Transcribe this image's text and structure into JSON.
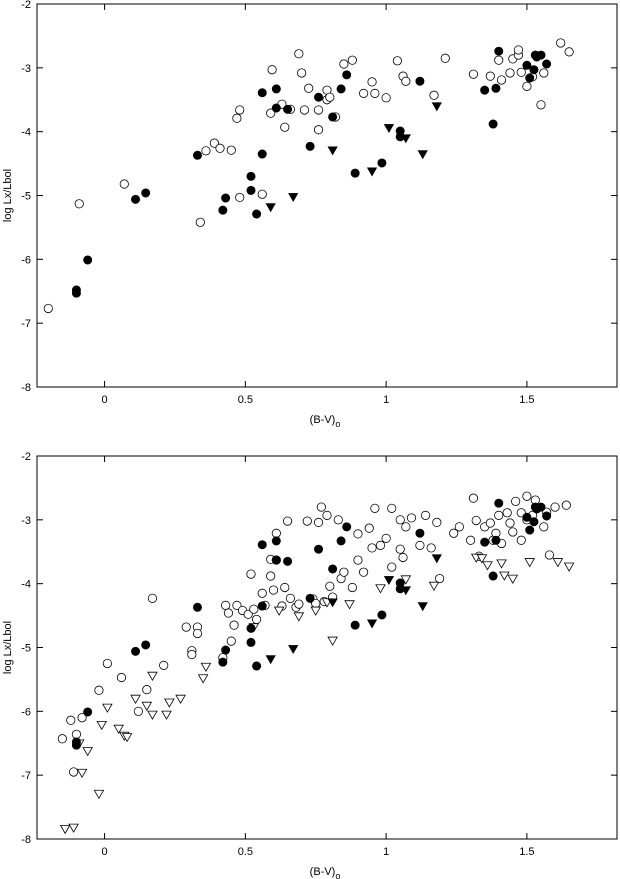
{
  "chart_data": [
    {
      "type": "scatter",
      "xlabel": "(B-V)",
      "xlabel_subscript": "o",
      "ylabel": "log Lx/Lbol",
      "xlim": [
        -0.24,
        1.82
      ],
      "ylim": [
        -8,
        -2
      ],
      "xticks": [
        0,
        0.5,
        1,
        1.5
      ],
      "yticks": [
        -8,
        -7,
        -6,
        -5,
        -4,
        -3,
        -2
      ],
      "series": [
        {
          "marker": "circle",
          "filled": false,
          "color": "#000000",
          "x": [
            -0.2,
            -0.09,
            0.07,
            0.34,
            0.36,
            0.39,
            0.41,
            0.45,
            0.47,
            0.48,
            0.48,
            0.56,
            0.59,
            0.595,
            0.63,
            0.64,
            0.66,
            0.69,
            0.7,
            0.71,
            0.725,
            0.76,
            0.76,
            0.79,
            0.79,
            0.8,
            0.82,
            0.85,
            0.88,
            0.92,
            0.95,
            0.96,
            1.0,
            1.04,
            1.06,
            1.07,
            1.17,
            1.21,
            1.31,
            1.37,
            1.4,
            1.41,
            1.44,
            1.45,
            1.47,
            1.47,
            1.48,
            1.5,
            1.52,
            1.55,
            1.56,
            1.62,
            1.65
          ],
          "values": [
            -6.77,
            -5.13,
            -4.82,
            -5.42,
            -4.3,
            -4.18,
            -4.26,
            -4.29,
            -3.79,
            -3.66,
            -5.03,
            -4.98,
            -3.71,
            -3.03,
            -3.57,
            -3.93,
            -3.65,
            -2.78,
            -3.08,
            -3.66,
            -3.32,
            -3.66,
            -3.97,
            -3.35,
            -3.5,
            -3.46,
            -3.77,
            -2.94,
            -2.88,
            -3.4,
            -3.22,
            -3.4,
            -3.47,
            -2.89,
            -3.13,
            -3.21,
            -3.43,
            -2.85,
            -3.1,
            -3.13,
            -2.88,
            -3.19,
            -3.08,
            -2.86,
            -2.8,
            -2.72,
            -3.07,
            -3.29,
            -3.14,
            -3.58,
            -3.08,
            -2.61,
            -2.75
          ]
        },
        {
          "marker": "circle",
          "filled": true,
          "color": "#000000",
          "x": [
            -0.1,
            -0.1,
            -0.06,
            0.11,
            0.146,
            0.33,
            0.42,
            0.43,
            0.52,
            0.52,
            0.54,
            0.56,
            0.56,
            0.61,
            0.61,
            0.65,
            0.73,
            0.76,
            0.81,
            0.84,
            0.86,
            0.89,
            1.05,
            1.05,
            0.985,
            1.12,
            1.35,
            1.38,
            1.39,
            1.4,
            1.5,
            1.51,
            1.525,
            1.53,
            1.535,
            1.55,
            1.57
          ],
          "values": [
            -6.53,
            -6.48,
            -6.01,
            -5.06,
            -4.96,
            -4.37,
            -5.23,
            -5.04,
            -4.92,
            -4.7,
            -5.29,
            -4.35,
            -3.39,
            -3.33,
            -3.63,
            -3.65,
            -4.23,
            -3.46,
            -3.77,
            -3.33,
            -3.11,
            -4.65,
            -3.99,
            -4.08,
            -4.49,
            -3.21,
            -3.35,
            -3.88,
            -3.32,
            -2.74,
            -2.96,
            -3.16,
            -3.03,
            -2.8,
            -2.83,
            -2.8,
            -2.94
          ]
        },
        {
          "marker": "triangle-down",
          "filled": true,
          "color": "#000000",
          "x": [
            0.59,
            0.67,
            0.81,
            0.95,
            1.01,
            1.07,
            1.13,
            1.18
          ],
          "values": [
            -5.18,
            -5.02,
            -4.29,
            -4.62,
            -3.94,
            -4.1,
            -4.35,
            -3.6
          ]
        }
      ]
    },
    {
      "type": "scatter",
      "xlabel": "(B-V)",
      "xlabel_subscript": "o",
      "ylabel": "log Lx/Lbol",
      "xlim": [
        -0.24,
        1.82
      ],
      "ylim": [
        -8,
        -2
      ],
      "xticks": [
        0,
        0.5,
        1,
        1.5
      ],
      "yticks": [
        -8,
        -7,
        -6,
        -5,
        -4,
        -3,
        -2
      ],
      "series": [
        {
          "marker": "circle",
          "filled": false,
          "color": "#000000",
          "x": [
            -0.15,
            -0.12,
            -0.1,
            -0.11,
            -0.08,
            -0.02,
            0.01,
            0.06,
            0.12,
            0.15,
            0.17,
            0.21,
            0.29,
            0.31,
            0.31,
            0.33,
            0.33,
            0.42,
            0.43,
            0.44,
            0.45,
            0.46,
            0.47,
            0.49,
            0.51,
            0.52,
            0.53,
            0.54,
            0.56,
            0.57,
            0.59,
            0.59,
            0.6,
            0.61,
            0.61,
            0.63,
            0.64,
            0.65,
            0.66,
            0.68,
            0.69,
            0.72,
            0.74,
            0.75,
            0.76,
            0.77,
            0.78,
            0.79,
            0.8,
            0.81,
            0.83,
            0.84,
            0.85,
            0.88,
            0.9,
            0.9,
            0.92,
            0.94,
            0.95,
            0.96,
            0.98,
            1.0,
            1.02,
            1.02,
            1.05,
            1.05,
            1.06,
            1.07,
            1.09,
            1.12,
            1.14,
            1.16,
            1.18,
            1.19,
            1.24,
            1.26,
            1.3,
            1.31,
            1.32,
            1.33,
            1.35,
            1.37,
            1.38,
            1.39,
            1.4,
            1.41,
            1.43,
            1.44,
            1.45,
            1.46,
            1.48,
            1.48,
            1.5,
            1.5,
            1.52,
            1.53,
            1.56,
            1.57,
            1.58,
            1.6,
            1.64
          ],
          "values": [
            -6.43,
            -6.14,
            -6.36,
            -6.95,
            -6.1,
            -5.67,
            -5.25,
            -5.47,
            -6.0,
            -5.66,
            -4.23,
            -5.28,
            -4.68,
            -5.05,
            -5.11,
            -4.68,
            -4.78,
            -5.16,
            -4.34,
            -4.46,
            -4.9,
            -4.65,
            -4.34,
            -4.42,
            -4.48,
            -3.85,
            -4.4,
            -4.56,
            -4.15,
            -4.34,
            -3.62,
            -3.88,
            -4.1,
            -3.21,
            -3.63,
            -4.35,
            -4.06,
            -3.02,
            -4.23,
            -4.37,
            -4.32,
            -3.02,
            -4.24,
            -4.31,
            -3.04,
            -2.8,
            -4.28,
            -2.93,
            -4.04,
            -4.21,
            -3.0,
            -3.92,
            -3.82,
            -4.06,
            -3.63,
            -3.22,
            -3.82,
            -3.13,
            -3.44,
            -2.82,
            -3.4,
            -3.29,
            -2.82,
            -3.74,
            -3.0,
            -3.46,
            -3.59,
            -3.11,
            -2.97,
            -3.4,
            -2.93,
            -3.44,
            -3.04,
            -3.92,
            -3.21,
            -3.11,
            -3.32,
            -2.66,
            -3.01,
            -3.57,
            -3.11,
            -3.05,
            -3.32,
            -3.21,
            -2.93,
            -3.37,
            -2.89,
            -3.05,
            -3.19,
            -2.71,
            -3.32,
            -2.89,
            -3.0,
            -2.63,
            -2.93,
            -2.69,
            -3.11,
            -2.88,
            -3.55,
            -2.8,
            -2.77
          ]
        },
        {
          "marker": "triangle-down",
          "filled": false,
          "color": "#000000",
          "x": [
            -0.14,
            -0.11,
            -0.09,
            -0.08,
            -0.06,
            -0.02,
            -0.01,
            0.01,
            0.05,
            0.07,
            0.08,
            0.11,
            0.15,
            0.17,
            0.17,
            0.22,
            0.23,
            0.27,
            0.35,
            0.36,
            0.53,
            0.62,
            0.69,
            0.75,
            0.79,
            0.81,
            0.87,
            0.98,
            1.07,
            1.17,
            1.32,
            1.34,
            1.36,
            1.41,
            1.42,
            1.45,
            1.51,
            1.61,
            1.65
          ],
          "values": [
            -7.84,
            -7.82,
            -6.5,
            -6.96,
            -6.62,
            -7.29,
            -6.21,
            -5.94,
            -6.27,
            -6.38,
            -6.4,
            -5.8,
            -5.91,
            -6.05,
            -5.44,
            -6.05,
            -5.86,
            -5.8,
            -5.48,
            -5.3,
            -4.68,
            -4.42,
            -4.51,
            -4.42,
            -4.29,
            -4.89,
            -4.32,
            -4.07,
            -3.93,
            -4.03,
            -3.59,
            -3.6,
            -3.71,
            -3.68,
            -3.87,
            -3.92,
            -3.66,
            -3.66,
            -3.73
          ]
        },
        {
          "marker": "circle",
          "filled": true,
          "color": "#000000",
          "x": [
            -0.1,
            -0.1,
            -0.06,
            0.11,
            0.146,
            0.33,
            0.42,
            0.43,
            0.52,
            0.52,
            0.54,
            0.56,
            0.56,
            0.61,
            0.61,
            0.65,
            0.73,
            0.76,
            0.81,
            0.84,
            0.86,
            0.89,
            1.05,
            1.05,
            0.985,
            1.12,
            1.35,
            1.38,
            1.39,
            1.4,
            1.5,
            1.51,
            1.525,
            1.53,
            1.535,
            1.55,
            1.57
          ],
          "values": [
            -6.53,
            -6.48,
            -6.01,
            -5.06,
            -4.96,
            -4.37,
            -5.23,
            -5.04,
            -4.92,
            -4.7,
            -5.29,
            -4.35,
            -3.39,
            -3.33,
            -3.63,
            -3.65,
            -4.23,
            -3.46,
            -3.77,
            -3.33,
            -3.11,
            -4.65,
            -3.99,
            -4.08,
            -4.49,
            -3.21,
            -3.35,
            -3.88,
            -3.32,
            -2.74,
            -2.96,
            -3.16,
            -3.03,
            -2.8,
            -2.83,
            -2.8,
            -2.94
          ]
        },
        {
          "marker": "triangle-down",
          "filled": true,
          "color": "#000000",
          "x": [
            0.59,
            0.67,
            0.81,
            0.95,
            1.01,
            1.07,
            1.13,
            1.18
          ],
          "values": [
            -5.18,
            -5.02,
            -4.29,
            -4.62,
            -3.94,
            -4.1,
            -4.35,
            -3.6
          ]
        }
      ]
    }
  ]
}
